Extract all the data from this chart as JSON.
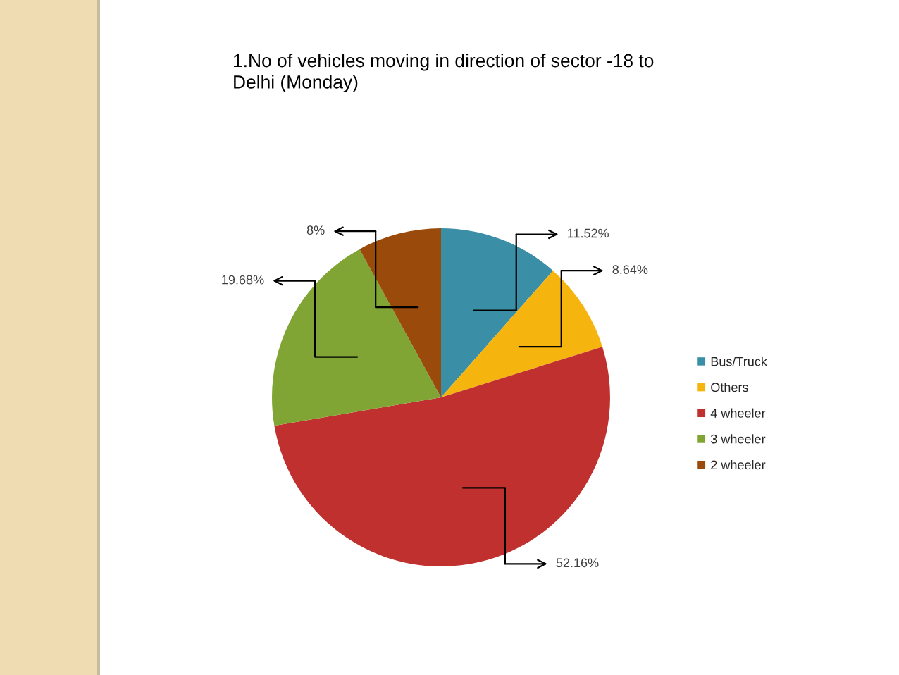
{
  "chart_data": {
    "type": "pie",
    "title": "1.No of vehicles moving in direction of sector -18 to\nDelhi (Monday)",
    "categories": [
      "Bus/Truck",
      "Others",
      "4 wheeler",
      "3 wheeler",
      "2 wheeler"
    ],
    "values": [
      11.52,
      8.64,
      52.16,
      19.68,
      8
    ],
    "colors": [
      "#3a8ea6",
      "#f6b40e",
      "#c0302e",
      "#80a535",
      "#9a4a0a"
    ],
    "value_labels": [
      "11.52%",
      "8.64%",
      "52.16%",
      "19.68%",
      "8%"
    ],
    "legend": "right"
  }
}
